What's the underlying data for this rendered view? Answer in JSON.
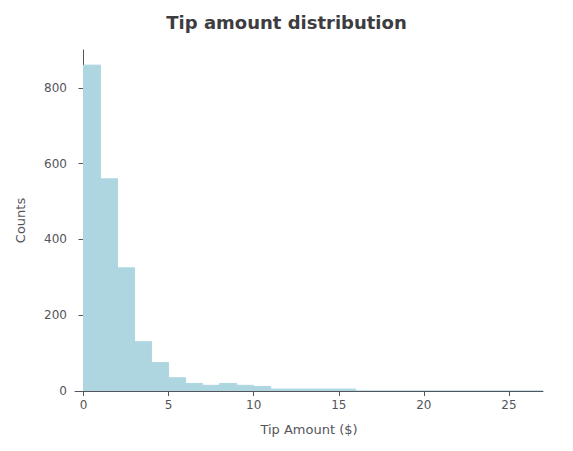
{
  "chart_data": {
    "type": "histogram",
    "title": "Tip amount distribution",
    "xlabel": "Tip Amount ($)",
    "ylabel": "Counts",
    "bins": [
      0,
      1,
      2,
      3,
      4,
      5,
      6,
      7,
      8,
      9,
      10,
      11,
      12,
      13,
      14,
      15,
      16,
      17,
      18,
      19,
      20,
      21,
      22,
      23,
      24,
      25,
      26,
      27
    ],
    "counts": [
      860,
      560,
      325,
      130,
      75,
      35,
      20,
      15,
      20,
      15,
      12,
      5,
      5,
      5,
      5,
      5,
      0,
      0,
      0,
      0,
      0,
      0,
      0,
      0,
      0,
      0,
      0
    ],
    "color": "#aed6e1",
    "xlim": [
      -0.5,
      27
    ],
    "ylim": [
      0,
      900
    ],
    "xticks": [
      0,
      5,
      10,
      15,
      20,
      25
    ],
    "yticks": [
      0,
      200,
      400,
      600,
      800
    ],
    "grid": false
  }
}
